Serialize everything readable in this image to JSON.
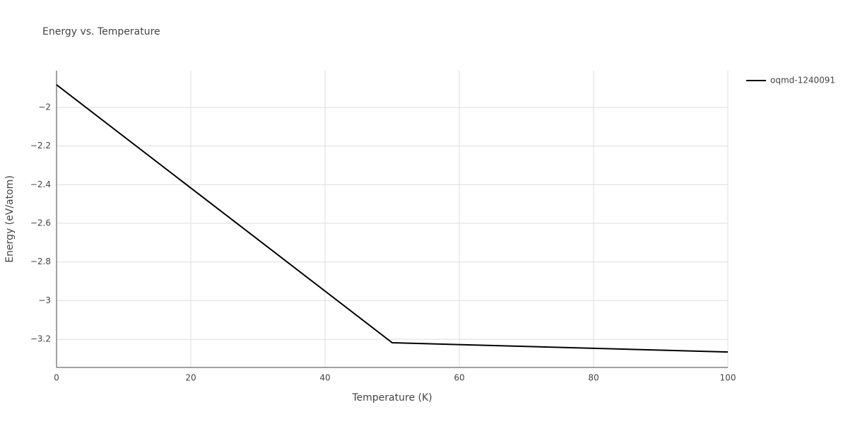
{
  "chart_data": {
    "type": "line",
    "title": "Energy vs. Temperature",
    "x_label": "Temperature (K)",
    "y_label": "Energy (eV/atom)",
    "x": [
      0,
      50,
      100
    ],
    "series": [
      {
        "name": "oqmd-1240091",
        "color": "#000000",
        "values": [
          -1.883,
          -3.218,
          -3.266
        ]
      }
    ],
    "xlim": [
      0,
      100
    ],
    "xticks": [
      0,
      20,
      40,
      60,
      80,
      100
    ],
    "ylim": [
      -3.346,
      -1.81
    ],
    "yticks": [
      {
        "value": -2,
        "label": "−2"
      },
      {
        "value": -2.2,
        "label": "−2.2"
      },
      {
        "value": -2.4,
        "label": "−2.4"
      },
      {
        "value": -2.6,
        "label": "−2.6"
      },
      {
        "value": -2.8,
        "label": "−2.8"
      },
      {
        "value": -3,
        "label": "−3"
      },
      {
        "value": -3.2,
        "label": "−3.2"
      }
    ],
    "grid": true,
    "legend": "right"
  }
}
